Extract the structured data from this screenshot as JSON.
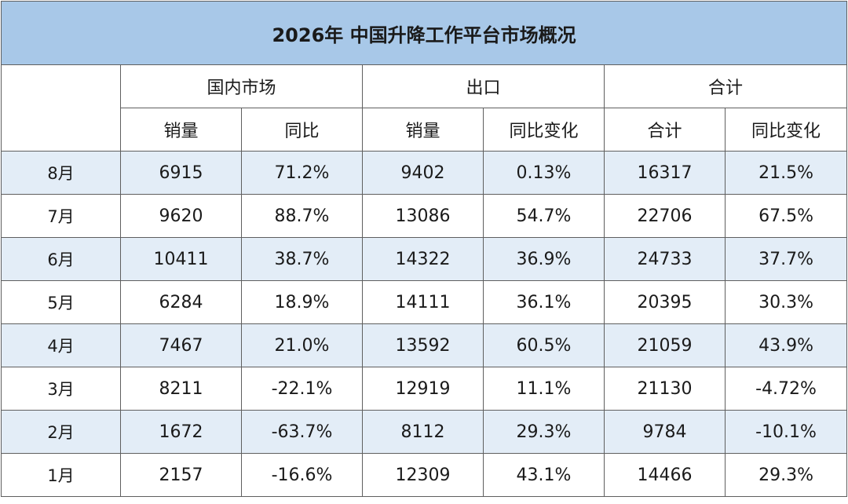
{
  "title": "2026年 中国升降工作平台市场概况",
  "groups": {
    "domestic": "国内市场",
    "export": "出口",
    "total": "合计"
  },
  "subheaders": [
    "销量",
    "同比",
    "销量",
    "同比变化",
    "合计",
    "同比变化"
  ],
  "rows": [
    {
      "month": "8月",
      "domestic_sales": "6915",
      "domestic_yoy": "71.2%",
      "export_sales": "9402",
      "export_yoy": "0.13%",
      "total": "16317",
      "total_yoy": "21.5%"
    },
    {
      "month": "7月",
      "domestic_sales": "9620",
      "domestic_yoy": "88.7%",
      "export_sales": "13086",
      "export_yoy": "54.7%",
      "total": "22706",
      "total_yoy": "67.5%"
    },
    {
      "month": "6月",
      "domestic_sales": "10411",
      "domestic_yoy": "38.7%",
      "export_sales": "14322",
      "export_yoy": "36.9%",
      "total": "24733",
      "total_yoy": "37.7%"
    },
    {
      "month": "5月",
      "domestic_sales": "6284",
      "domestic_yoy": "18.9%",
      "export_sales": "14111",
      "export_yoy": "36.1%",
      "total": "20395",
      "total_yoy": "30.3%"
    },
    {
      "month": "4月",
      "domestic_sales": "7467",
      "domestic_yoy": "21.0%",
      "export_sales": "13592",
      "export_yoy": "60.5%",
      "total": "21059",
      "total_yoy": "43.9%"
    },
    {
      "month": "3月",
      "domestic_sales": "8211",
      "domestic_yoy": "-22.1%",
      "export_sales": "12919",
      "export_yoy": "11.1%",
      "total": "21130",
      "total_yoy": "-4.72%"
    },
    {
      "month": "2月",
      "domestic_sales": "1672",
      "domestic_yoy": "-63.7%",
      "export_sales": "8112",
      "export_yoy": "29.3%",
      "total": "9784",
      "total_yoy": "-10.1%"
    },
    {
      "month": "1月",
      "domestic_sales": "2157",
      "domestic_yoy": "-16.6%",
      "export_sales": "12309",
      "export_yoy": "43.1%",
      "total": "14466",
      "total_yoy": "29.3%"
    }
  ],
  "colors": {
    "title_bg": "#a8c8e8",
    "shade_bg": "#e3edf7",
    "border": "#5f5f5f"
  }
}
